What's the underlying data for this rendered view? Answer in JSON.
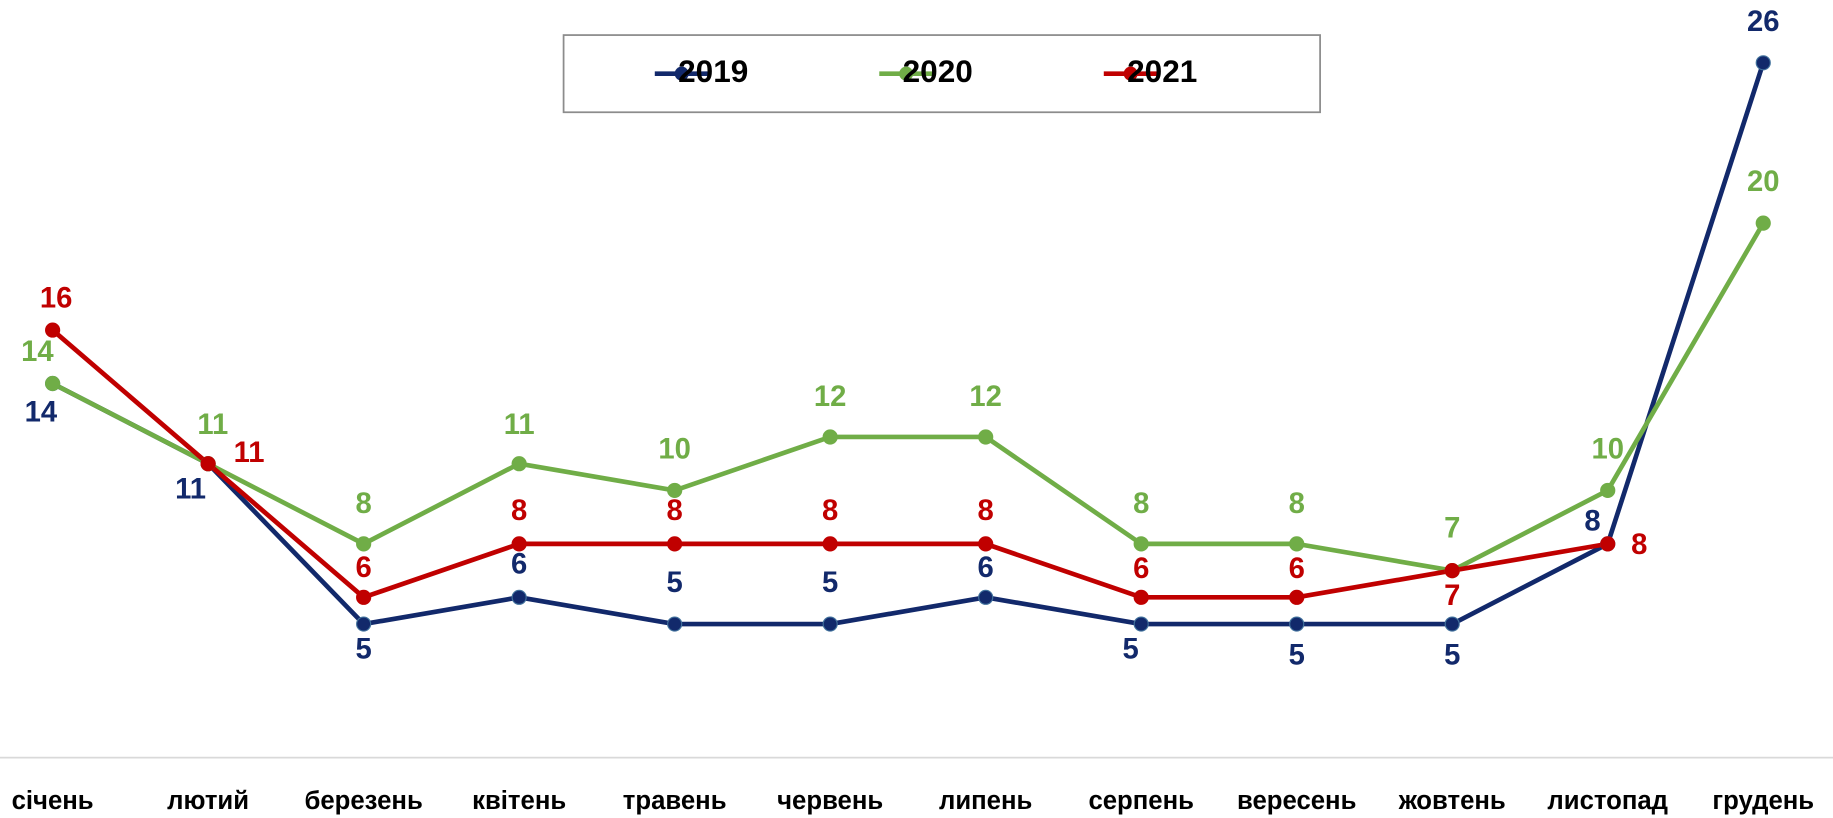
{
  "chart_data": {
    "type": "line",
    "categories": [
      "січень",
      "лютий",
      "березень",
      "квітень",
      "травень",
      "червень",
      "липень",
      "серпень",
      "вересень",
      "жовтень",
      "листопад",
      "грудень"
    ],
    "series": [
      {
        "name": "2019",
        "color": "#12296b",
        "values": [
          14,
          11,
          5,
          6,
          5,
          5,
          6,
          5,
          5,
          5,
          8,
          26
        ]
      },
      {
        "name": "2020",
        "color": "#70ad47",
        "values": [
          14,
          11,
          8,
          11,
          10,
          12,
          12,
          8,
          8,
          7,
          10,
          20
        ]
      },
      {
        "name": "2021",
        "color": "#c00000",
        "values": [
          16,
          11,
          6,
          8,
          8,
          8,
          8,
          6,
          6,
          7,
          8,
          null
        ]
      }
    ],
    "legend": "top"
  }
}
